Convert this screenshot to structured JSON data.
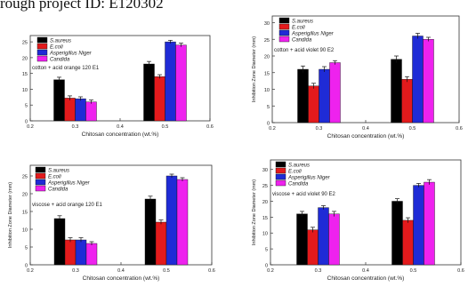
{
  "page": {
    "header_text": "rough project ID: E120302"
  },
  "colors": {
    "S.aureus": "#000000",
    "E.coli": "#e31a1c",
    "Asperigillus Niger": "#1f2bd6",
    "Candida": "#ee22ee"
  },
  "chart_data": [
    {
      "type": "bar",
      "annotation": "cotton + acid orange 120 E1",
      "xlabel": "Chitosan  concentration (wt.%)",
      "ylabel": "",
      "xlim": [
        0.2,
        0.6
      ],
      "xticks": [
        "0.2",
        "0.3",
        "0.4",
        "0.5",
        "0.6"
      ],
      "ylim": [
        0,
        27
      ],
      "yticks": [
        "0",
        "5",
        "10",
        "15",
        "20",
        "25"
      ],
      "x": [
        0.3,
        0.5
      ],
      "legend_position": "top-left",
      "series": [
        {
          "name": "S.aureus",
          "values": [
            13,
            18
          ],
          "errors": [
            0.8,
            0.8
          ]
        },
        {
          "name": "E.coli",
          "values": [
            7.2,
            14
          ],
          "errors": [
            0.7,
            0.6
          ]
        },
        {
          "name": "Asperigillus Niger",
          "values": [
            7,
            25
          ],
          "errors": [
            0.6,
            0.5
          ]
        },
        {
          "name": "Candida",
          "values": [
            6,
            24
          ],
          "errors": [
            0.6,
            0.6
          ]
        }
      ]
    },
    {
      "type": "bar",
      "annotation": "cotton + acid violet 90 E2",
      "xlabel": "Chitosan  concentration (wt.%)",
      "ylabel": "Inhibition Zone Diameter (mm)",
      "xlim": [
        0.2,
        0.6
      ],
      "xticks": [
        "0.2",
        "0.3",
        "0.4",
        "0.5",
        "0.6"
      ],
      "ylim": [
        0,
        32
      ],
      "yticks": [
        "0",
        "5",
        "10",
        "15",
        "20",
        "25",
        "30"
      ],
      "x": [
        0.3,
        0.5
      ],
      "legend_position": "top-left",
      "series": [
        {
          "name": "S.aureus",
          "values": [
            16,
            19
          ],
          "errors": [
            1,
            1
          ]
        },
        {
          "name": "E.coli",
          "values": [
            11,
            13
          ],
          "errors": [
            0.8,
            0.8
          ]
        },
        {
          "name": "Asperigillus Niger",
          "values": [
            16,
            26
          ],
          "errors": [
            0.8,
            0.8
          ]
        },
        {
          "name": "Candida",
          "values": [
            18,
            25
          ],
          "errors": [
            0.6,
            0.6
          ]
        }
      ]
    },
    {
      "type": "bar",
      "annotation": "viscose + acid orange 120 E1",
      "xlabel": "Chitosan  concentration (wt.%)",
      "ylabel": "Inhibition Zone Diameter (mm)",
      "xlim": [
        0.2,
        0.6
      ],
      "xticks": [
        "0.2",
        "0.3",
        "0.4",
        "0.5",
        "0.6"
      ],
      "ylim": [
        0,
        28
      ],
      "yticks": [
        "0",
        "5",
        "10",
        "15",
        "20",
        "25"
      ],
      "x": [
        0.3,
        0.5
      ],
      "legend_position": "top-left",
      "series": [
        {
          "name": "S.aureus",
          "values": [
            13,
            18.5
          ],
          "errors": [
            0.8,
            0.8
          ]
        },
        {
          "name": "E.coli",
          "values": [
            7,
            12
          ],
          "errors": [
            0.6,
            0.6
          ]
        },
        {
          "name": "Asperigillus Niger",
          "values": [
            7,
            25
          ],
          "errors": [
            0.6,
            0.5
          ]
        },
        {
          "name": "Candida",
          "values": [
            6,
            24
          ],
          "errors": [
            0.5,
            0.5
          ]
        }
      ]
    },
    {
      "type": "bar",
      "annotation": "viscose + acid violet 90 E2",
      "xlabel": "Chitosan concentration (wt.%)",
      "ylabel": "Inhibition Zone Diameter (mm)",
      "xlim": [
        0.2,
        0.6
      ],
      "xticks": [
        "0.2",
        "0.3",
        "0.4",
        "0.5",
        "0.6"
      ],
      "ylim": [
        0,
        33
      ],
      "yticks": [
        "0",
        "5",
        "10",
        "15",
        "20",
        "25",
        "30"
      ],
      "x": [
        0.3,
        0.5
      ],
      "legend_position": "top-left",
      "series": [
        {
          "name": "S.aureus",
          "values": [
            16,
            20
          ],
          "errors": [
            0.8,
            0.8
          ]
        },
        {
          "name": "E.coli",
          "values": [
            11,
            14
          ],
          "errors": [
            0.8,
            0.8
          ]
        },
        {
          "name": "Asperigillus Niger",
          "values": [
            18,
            25
          ],
          "errors": [
            0.6,
            0.6
          ]
        },
        {
          "name": "Candida",
          "values": [
            16,
            26
          ],
          "errors": [
            0.8,
            0.8
          ]
        }
      ]
    }
  ]
}
